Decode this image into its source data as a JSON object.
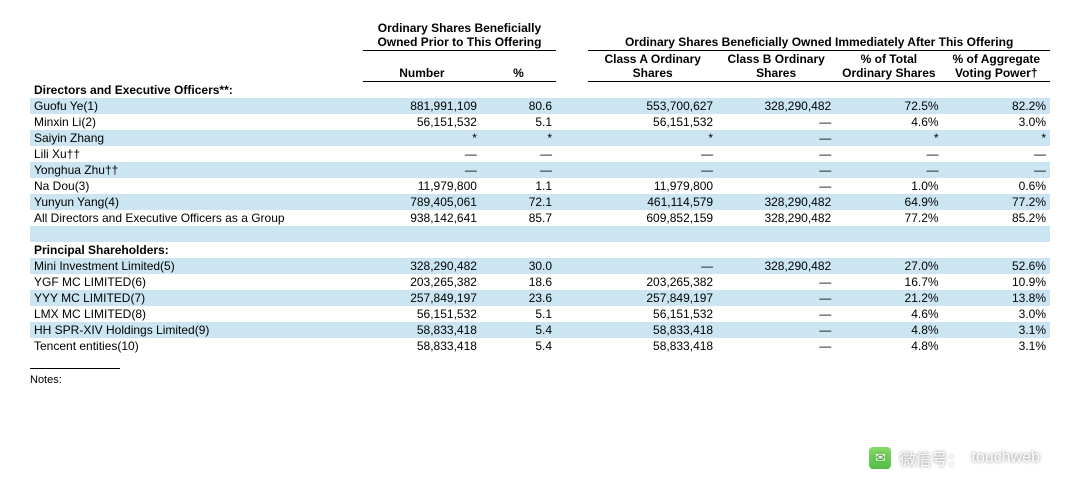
{
  "headers": {
    "prior_group": "Ordinary Shares Beneficially Owned Prior to This Offering",
    "after_group": "Ordinary Shares Beneficially Owned Immediately After This Offering",
    "number": "Number",
    "pct": "%",
    "classA": "Class A Ordinary Shares",
    "classB": "Class B Ordinary Shares",
    "pctTotal": "% of Total Ordinary Shares",
    "pctVoting": "% of Aggregate Voting Power†"
  },
  "sections": {
    "directors": "Directors and Executive Officers**:",
    "principals": "Principal Shareholders:"
  },
  "directors": [
    {
      "name": "Guofu Ye(1)",
      "num": "881,991,109",
      "pct": "80.6",
      "a": "553,700,627",
      "b": "328,290,482",
      "pt": "72.5%",
      "pv": "82.2%",
      "stripe": true
    },
    {
      "name": "Minxin Li(2)",
      "num": "56,151,532",
      "pct": "5.1",
      "a": "56,151,532",
      "b": "—",
      "pt": "4.6%",
      "pv": "3.0%",
      "stripe": false
    },
    {
      "name": "Saiyin Zhang",
      "num": "*",
      "pct": "*",
      "a": "*",
      "b": "—",
      "pt": "*",
      "pv": "*",
      "stripe": true
    },
    {
      "name": "Lili Xu††",
      "num": "—",
      "pct": "—",
      "a": "—",
      "b": "—",
      "pt": "—",
      "pv": "—",
      "stripe": false
    },
    {
      "name": "Yonghua Zhu††",
      "num": "—",
      "pct": "—",
      "a": "—",
      "b": "—",
      "pt": "—",
      "pv": "—",
      "stripe": true
    },
    {
      "name": "Na Dou(3)",
      "num": "11,979,800",
      "pct": "1.1",
      "a": "11,979,800",
      "b": "—",
      "pt": "1.0%",
      "pv": "0.6%",
      "stripe": false
    },
    {
      "name": "Yunyun Yang(4)",
      "num": "789,405,061",
      "pct": "72.1",
      "a": "461,114,579",
      "b": "328,290,482",
      "pt": "64.9%",
      "pv": "77.2%",
      "stripe": true
    },
    {
      "name": "All Directors and Executive Officers as a Group",
      "num": "938,142,641",
      "pct": "85.7",
      "a": "609,852,159",
      "b": "328,290,482",
      "pt": "77.2%",
      "pv": "85.2%",
      "stripe": false
    }
  ],
  "principals": [
    {
      "name": "Mini Investment Limited(5)",
      "num": "328,290,482",
      "pct": "30.0",
      "a": "—",
      "b": "328,290,482",
      "pt": "27.0%",
      "pv": "52.6%",
      "stripe": true
    },
    {
      "name": "YGF MC LIMITED(6)",
      "num": "203,265,382",
      "pct": "18.6",
      "a": "203,265,382",
      "b": "—",
      "pt": "16.7%",
      "pv": "10.9%",
      "stripe": false
    },
    {
      "name": "YYY MC LIMITED(7)",
      "num": "257,849,197",
      "pct": "23.6",
      "a": "257,849,197",
      "b": "—",
      "pt": "21.2%",
      "pv": "13.8%",
      "stripe": true
    },
    {
      "name": "LMX MC LIMITED(8)",
      "num": "56,151,532",
      "pct": "5.1",
      "a": "56,151,532",
      "b": "—",
      "pt": "4.6%",
      "pv": "3.0%",
      "stripe": false
    },
    {
      "name": "HH SPR-XIV Holdings Limited(9)",
      "num": "58,833,418",
      "pct": "5.4",
      "a": "58,833,418",
      "b": "—",
      "pt": "4.8%",
      "pv": "3.1%",
      "stripe": true
    },
    {
      "name": "Tencent entities(10)",
      "num": "58,833,418",
      "pct": "5.4",
      "a": "58,833,418",
      "b": "—",
      "pt": "4.8%",
      "pv": "3.1%",
      "stripe": false
    }
  ],
  "notes_label": "Notes:",
  "watermark": {
    "prefix": "微信号：",
    "id": "touchweb"
  },
  "colors": {
    "stripe": "#cce5f2",
    "text": "#000000",
    "bg": "#ffffff"
  }
}
